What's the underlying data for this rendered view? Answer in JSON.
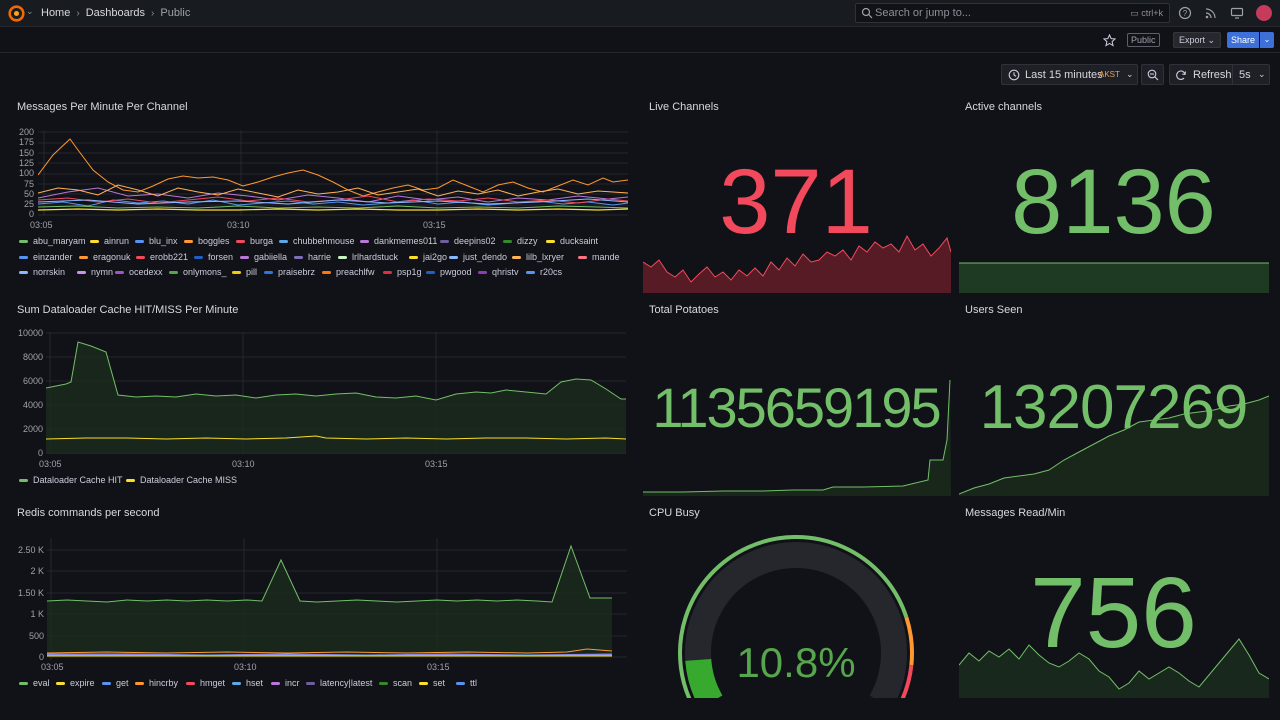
{
  "topbar": {
    "breadcrumb": {
      "home": "Home",
      "dashboards": "Dashboards",
      "current": "Public"
    },
    "search": {
      "placeholder": "Search or jump to...",
      "shortcut": "ctrl+k"
    }
  },
  "subbar": {
    "public_badge": "Public",
    "export_label": "Export",
    "share_label": "Share"
  },
  "timepicker": {
    "range": "Last 15 minutes",
    "timezone": "AKST",
    "refresh_label": "Refresh",
    "refresh_interval": "5s"
  },
  "colors": {
    "green": "#73bf69",
    "red": "#f2495c",
    "orange": "#ff9830",
    "yellow": "#fade2a",
    "blue": "#5794f2"
  },
  "panels": {
    "messages": {
      "title": "Messages Per Minute Per Channel",
      "yticks": [
        "200",
        "175",
        "150",
        "125",
        "100",
        "75",
        "50",
        "25",
        "0"
      ],
      "xticks": [
        "03:05",
        "03:10",
        "03:15"
      ],
      "legend": [
        {
          "name": "abu_maryam",
          "color": "#73bf69"
        },
        {
          "name": "ainrun",
          "color": "#fade2a"
        },
        {
          "name": "blu_inx",
          "color": "#5794f2"
        },
        {
          "name": "boggles",
          "color": "#ff9830"
        },
        {
          "name": "burga",
          "color": "#f2495c"
        },
        {
          "name": "chubbehmouse",
          "color": "#5aa9e6"
        },
        {
          "name": "dankmemes011",
          "color": "#b877d9"
        },
        {
          "name": "deepins02",
          "color": "#705da0"
        },
        {
          "name": "dizzy",
          "color": "#37872d"
        },
        {
          "name": "ducksaint",
          "color": "#fade2a"
        },
        {
          "name": "einzander",
          "color": "#5794f2"
        },
        {
          "name": "eragonuk",
          "color": "#ff9830"
        },
        {
          "name": "erobb221",
          "color": "#f2495c"
        },
        {
          "name": "forsen",
          "color": "#1f60c4"
        },
        {
          "name": "gabiiella",
          "color": "#b877d9"
        },
        {
          "name": "harrie",
          "color": "#806eb7"
        },
        {
          "name": "lrlhardstuck",
          "color": "#c8f2c2"
        },
        {
          "name": "jai2go",
          "color": "#fade2a"
        },
        {
          "name": "just_dendo",
          "color": "#8ab8ff"
        },
        {
          "name": "lilb_lxryer",
          "color": "#ffb357"
        },
        {
          "name": "mande",
          "color": "#ff7383"
        },
        {
          "name": "norrskin",
          "color": "#8ab8ff"
        },
        {
          "name": "nymn",
          "color": "#ca95e5"
        },
        {
          "name": "ocedexx",
          "color": "#a352cc"
        },
        {
          "name": "onlymons_",
          "color": "#56a64b"
        },
        {
          "name": "pill",
          "color": "#f2cc0c"
        },
        {
          "name": "praisebrz",
          "color": "#3274d9"
        },
        {
          "name": "preachlfw",
          "color": "#ff780a"
        },
        {
          "name": "psp1g",
          "color": "#e02f44"
        },
        {
          "name": "pwgood",
          "color": "#1f60c4"
        },
        {
          "name": "qhristv",
          "color": "#8f3bb8"
        },
        {
          "name": "r20cs",
          "color": "#5794f2"
        }
      ]
    },
    "live": {
      "title": "Live Channels",
      "value": "371"
    },
    "active": {
      "title": "Active channels",
      "value": "8136"
    },
    "cache": {
      "title": "Sum Dataloader Cache HIT/MISS Per Minute",
      "yticks": [
        "10000",
        "8000",
        "6000",
        "4000",
        "2000",
        "0"
      ],
      "xticks": [
        "03:05",
        "03:10",
        "03:15"
      ],
      "legend": [
        {
          "name": "Dataloader Cache HIT",
          "color": "#73bf69"
        },
        {
          "name": "Dataloader Cache MISS",
          "color": "#fade2a"
        }
      ]
    },
    "potatoes": {
      "title": "Total Potatoes",
      "value": "1135659195"
    },
    "users": {
      "title": "Users Seen",
      "value": "13207269"
    },
    "redis": {
      "title": "Redis commands per second",
      "yticks": [
        "2.50 K",
        "2 K",
        "1.50 K",
        "1 K",
        "500",
        "0"
      ],
      "xticks": [
        "03:05",
        "03:10",
        "03:15"
      ],
      "legend": [
        {
          "name": "eval",
          "color": "#73bf69"
        },
        {
          "name": "expire",
          "color": "#fade2a"
        },
        {
          "name": "get",
          "color": "#5794f2"
        },
        {
          "name": "hincrby",
          "color": "#ff9830"
        },
        {
          "name": "hmget",
          "color": "#f2495c"
        },
        {
          "name": "hset",
          "color": "#5aa9e6"
        },
        {
          "name": "incr",
          "color": "#b877d9"
        },
        {
          "name": "latency|latest",
          "color": "#705da0"
        },
        {
          "name": "scan",
          "color": "#37872d"
        },
        {
          "name": "set",
          "color": "#fade2a"
        },
        {
          "name": "ttl",
          "color": "#5794f2"
        }
      ]
    },
    "cpu": {
      "title": "CPU Busy",
      "value": "10.8%",
      "percent": 10.8
    },
    "read": {
      "title": "Messages Read/Min",
      "value": "756"
    }
  }
}
